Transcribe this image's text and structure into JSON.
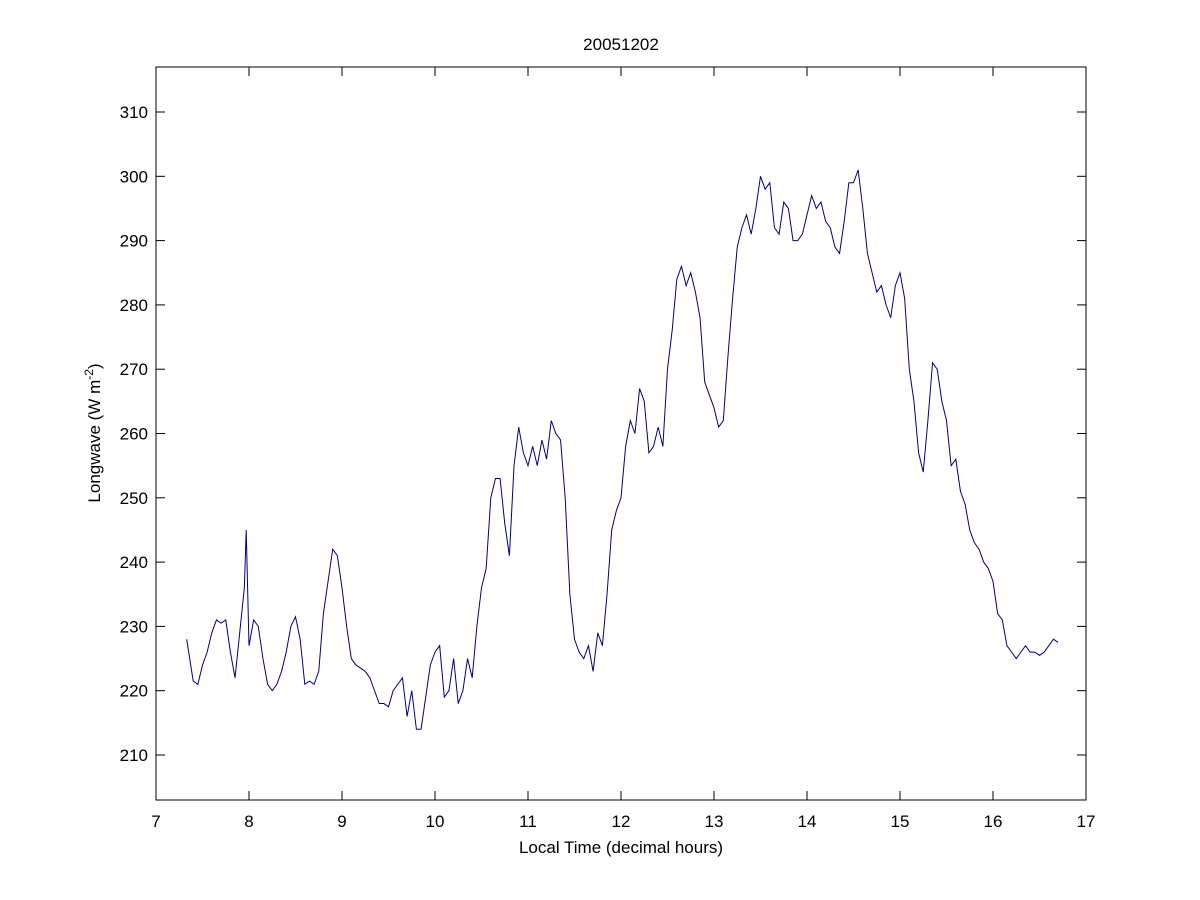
{
  "chart_data": {
    "type": "line",
    "title": "20051202",
    "x_label": "Local Time (decimal hours)",
    "y_label": [
      "Longwave (W m",
      "-2",
      ")"
    ],
    "xlim": [
      7,
      17
    ],
    "xticks": [
      7,
      8,
      9,
      10,
      11,
      12,
      13,
      14,
      15,
      16,
      17
    ],
    "ylim": [
      203,
      317
    ],
    "yticks": [
      210,
      220,
      230,
      240,
      250,
      260,
      270,
      280,
      290,
      300,
      310
    ],
    "grid": false,
    "series": [
      {
        "color": "#000080",
        "x": [
          7.33,
          7.4,
          7.45,
          7.5,
          7.55,
          7.6,
          7.65,
          7.7,
          7.75,
          7.8,
          7.85,
          7.9,
          7.95,
          7.97,
          8.0,
          8.05,
          8.1,
          8.15,
          8.2,
          8.25,
          8.3,
          8.35,
          8.4,
          8.45,
          8.5,
          8.55,
          8.6,
          8.65,
          8.7,
          8.75,
          8.8,
          8.85,
          8.9,
          8.95,
          9.0,
          9.05,
          9.1,
          9.15,
          9.2,
          9.25,
          9.3,
          9.35,
          9.4,
          9.45,
          9.5,
          9.55,
          9.6,
          9.65,
          9.7,
          9.75,
          9.8,
          9.85,
          9.9,
          9.95,
          10.0,
          10.05,
          10.1,
          10.15,
          10.2,
          10.25,
          10.3,
          10.35,
          10.4,
          10.45,
          10.5,
          10.55,
          10.6,
          10.65,
          10.7,
          10.75,
          10.8,
          10.85,
          10.9,
          10.95,
          11.0,
          11.05,
          11.1,
          11.15,
          11.2,
          11.25,
          11.3,
          11.35,
          11.4,
          11.45,
          11.5,
          11.55,
          11.6,
          11.65,
          11.7,
          11.75,
          11.8,
          11.85,
          11.9,
          11.95,
          12.0,
          12.05,
          12.1,
          12.15,
          12.2,
          12.25,
          12.3,
          12.35,
          12.4,
          12.45,
          12.5,
          12.55,
          12.6,
          12.65,
          12.7,
          12.75,
          12.8,
          12.85,
          12.9,
          12.95,
          13.0,
          13.05,
          13.1,
          13.15,
          13.2,
          13.25,
          13.3,
          13.35,
          13.4,
          13.45,
          13.5,
          13.55,
          13.6,
          13.65,
          13.7,
          13.75,
          13.8,
          13.85,
          13.9,
          13.95,
          14.0,
          14.05,
          14.1,
          14.15,
          14.2,
          14.25,
          14.3,
          14.35,
          14.4,
          14.45,
          14.5,
          14.55,
          14.6,
          14.65,
          14.7,
          14.75,
          14.8,
          14.85,
          14.9,
          14.95,
          15.0,
          15.05,
          15.1,
          15.15,
          15.2,
          15.25,
          15.3,
          15.35,
          15.4,
          15.45,
          15.5,
          15.55,
          15.6,
          15.65,
          15.7,
          15.75,
          15.8,
          15.85,
          15.9,
          15.95,
          16.0,
          16.05,
          16.1,
          16.15,
          16.2,
          16.25,
          16.3,
          16.35,
          16.4,
          16.45,
          16.5,
          16.55,
          16.6,
          16.65,
          16.7
        ],
        "values": [
          228,
          221.5,
          221,
          224,
          226,
          229,
          231,
          230.5,
          231,
          226,
          222,
          229,
          236,
          245,
          227,
          231,
          230,
          225,
          221,
          220,
          221,
          223,
          226,
          230,
          231.5,
          228,
          221,
          221.5,
          221,
          223,
          232,
          237,
          242,
          241,
          236,
          230,
          225,
          224,
          223.5,
          223,
          222,
          220,
          218,
          218,
          217.5,
          220,
          221,
          222,
          216,
          220,
          214,
          214,
          219,
          224,
          226,
          227,
          219,
          220,
          225,
          218,
          220,
          225,
          222,
          230,
          236,
          239,
          250,
          253,
          253,
          246,
          241,
          255,
          261,
          257,
          255,
          258,
          255,
          259,
          256,
          262,
          260,
          259,
          250,
          235,
          228,
          226,
          225,
          227,
          223,
          229,
          227,
          235,
          245,
          248,
          250,
          258,
          262,
          260,
          267,
          265,
          257,
          258,
          261,
          258,
          270,
          276,
          284,
          286,
          283,
          285,
          282,
          278,
          268,
          266,
          264,
          261,
          262,
          272,
          281,
          289,
          292,
          294,
          291,
          295,
          300,
          298,
          299,
          292,
          291,
          296,
          295,
          290,
          290,
          291,
          294,
          297,
          295,
          296,
          293,
          292,
          289,
          288,
          293,
          299,
          299,
          301,
          295,
          288,
          285,
          282,
          283,
          280,
          278,
          283,
          285,
          281,
          270,
          265,
          257,
          254,
          262,
          271,
          270,
          265,
          262,
          255,
          256,
          251,
          249,
          245,
          243,
          242,
          240,
          239,
          237,
          232,
          231,
          227,
          226,
          225,
          226,
          227,
          226,
          226,
          225.5,
          226,
          227,
          228,
          227.5
        ]
      }
    ]
  }
}
